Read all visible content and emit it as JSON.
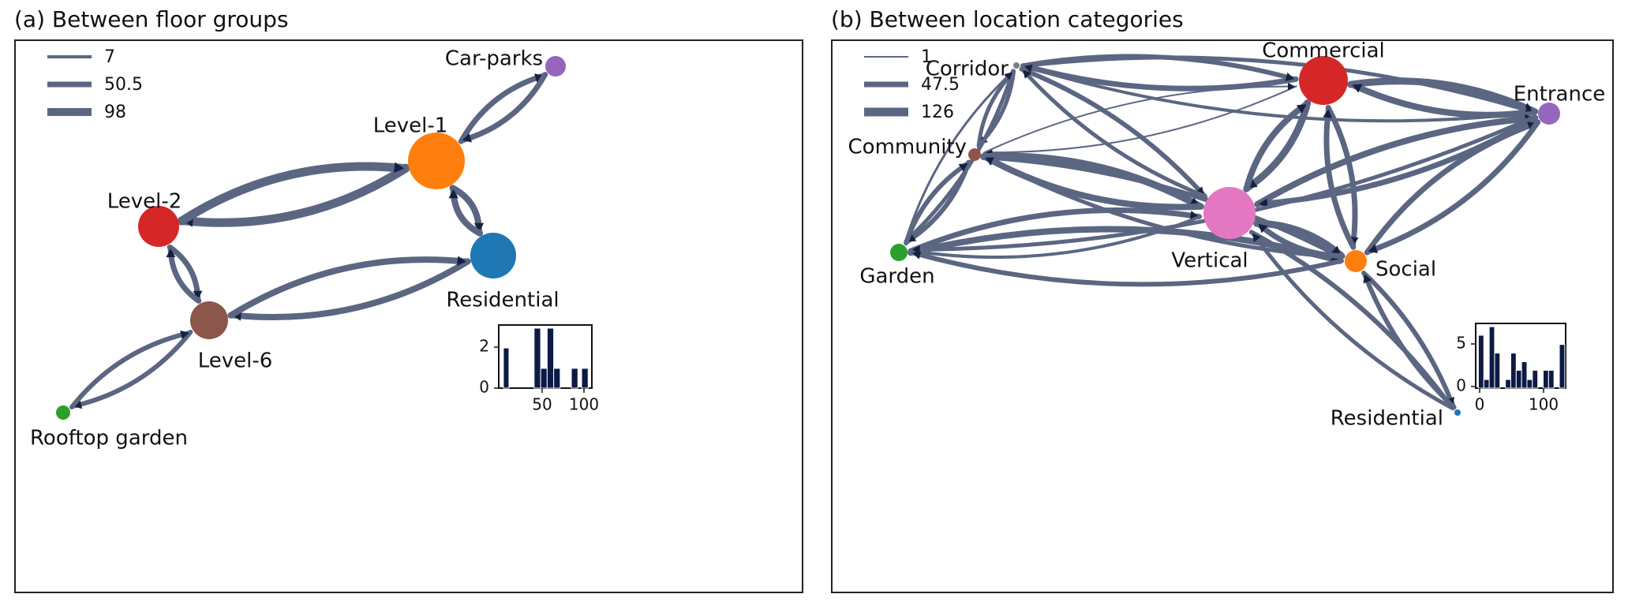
{
  "colors": {
    "edge": "#5b6682",
    "arrow": "#17213f",
    "hist_bar": "#0c1a45",
    "level1": "#ff7f0e",
    "level2": "#d62728",
    "level6": "#8c564b",
    "residential": "#1f77b4",
    "carparks": "#9467bd",
    "rooftop": "#2ca02c",
    "commercial": "#d62728",
    "vertical": "#e377c2",
    "social": "#ff7f0e",
    "entrance": "#9467bd",
    "garden": "#2ca02c",
    "community": "#8c564b",
    "corridor": "#7f7f7f",
    "residential_b": "#1f77b4"
  },
  "panel_a": {
    "title": "(a) Between floor groups",
    "legend": [
      "7",
      "50.5",
      "98"
    ],
    "nodes": [
      {
        "id": "Level-1",
        "label": "Level-1"
      },
      {
        "id": "Level-2",
        "label": "Level-2"
      },
      {
        "id": "Level-6",
        "label": "Level-6"
      },
      {
        "id": "Residential",
        "label": "Residential"
      },
      {
        "id": "Car-parks",
        "label": "Car-parks"
      },
      {
        "id": "Rooftop garden",
        "label": "Rooftop garden"
      }
    ],
    "inset_hist": {
      "yticks": [
        "0",
        "2"
      ],
      "xticks": [
        "50",
        "100"
      ]
    }
  },
  "panel_b": {
    "title": "(b) Between location categories",
    "legend": [
      "1",
      "47.5",
      "126"
    ],
    "nodes": [
      {
        "id": "Commercial",
        "label": "Commercial"
      },
      {
        "id": "Corridor",
        "label": "Corridor"
      },
      {
        "id": "Entrance",
        "label": "Entrance"
      },
      {
        "id": "Community",
        "label": "Community"
      },
      {
        "id": "Vertical",
        "label": "Vertical"
      },
      {
        "id": "Garden",
        "label": "Garden"
      },
      {
        "id": "Social",
        "label": "Social"
      },
      {
        "id": "Residential",
        "label": "Residential"
      }
    ],
    "inset_hist": {
      "yticks": [
        "0",
        "5"
      ],
      "xticks": [
        "0",
        "100"
      ]
    }
  }
}
